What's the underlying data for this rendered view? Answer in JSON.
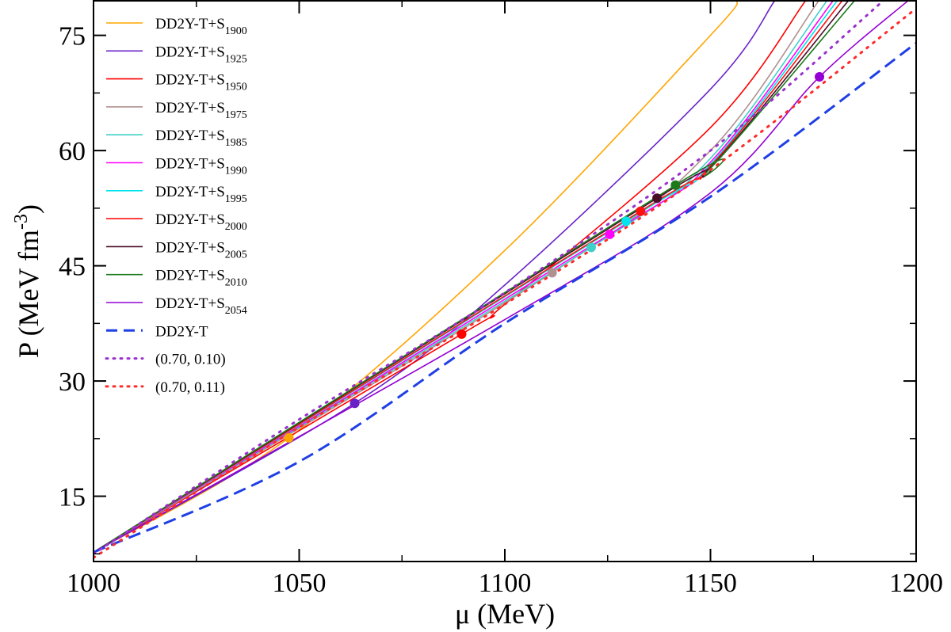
{
  "chart_data": {
    "type": "line",
    "xlabel": "μ (MeV)",
    "ylabel": "P (MeV fm",
    "ylabel_sup": "-3",
    "ylabel_close": ")",
    "xlim": [
      1000,
      1200
    ],
    "ylim": [
      6.5,
      79.5
    ],
    "xticks": [
      1000,
      1050,
      1100,
      1150,
      1200
    ],
    "xtick_labels": [
      "1000",
      "1050",
      "1100",
      "1150",
      "1200"
    ],
    "yticks": [
      15,
      30,
      45,
      60,
      75
    ],
    "ytick_labels": [
      "15",
      "30",
      "45",
      "60",
      "75"
    ],
    "x_minor_step": 25,
    "y_minor_step": 7.5,
    "grid": false,
    "legend_position": "top-left",
    "series": [
      {
        "name": "DD2Y-T+S1900",
        "label_base": "DD2Y-T+S",
        "label_sub": "1900",
        "color": "#ffa500",
        "style": "solid",
        "x": [
          1000,
          1047.5,
          1100,
          1150,
          1156.6
        ],
        "y": [
          7.7,
          22.6,
          47.0,
          75.0,
          79.5
        ],
        "marker": [
          1047.5,
          22.6
        ]
      },
      {
        "name": "DD2Y-T+S1925",
        "label_base": "DD2Y-T+S",
        "label_sub": "1925",
        "color": "#6a22c7",
        "style": "solid",
        "x": [
          1000,
          1063.5,
          1100,
          1150,
          1165.6
        ],
        "y": [
          7.7,
          27.1,
          42.5,
          68.0,
          79.5
        ],
        "marker": [
          1063.5,
          27.1
        ]
      },
      {
        "name": "DD2Y-T+S1950",
        "label_base": "DD2Y-T+S",
        "label_sub": "1950",
        "color": "#ff0000",
        "style": "solid",
        "x": [
          1000,
          1089.5,
          1100,
          1150,
          1173.1
        ],
        "y": [
          7.7,
          36.1,
          40.0,
          63.0,
          79.5
        ],
        "marker": [
          1089.5,
          36.1
        ]
      },
      {
        "name": "DD2Y-T+S1975",
        "label_base": "DD2Y-T+S",
        "label_sub": "1975",
        "color": "#b09090",
        "style": "solid",
        "x": [
          1000,
          1111.5,
          1150,
          1176.3
        ],
        "y": [
          7.7,
          44.1,
          60.0,
          79.5
        ],
        "marker": [
          1111.5,
          44.1
        ]
      },
      {
        "name": "DD2Y-T+S1985",
        "label_base": "DD2Y-T+S",
        "label_sub": "1985",
        "color": "#40d0c8",
        "style": "solid",
        "x": [
          1000,
          1121.0,
          1150,
          1178.3
        ],
        "y": [
          7.7,
          47.4,
          59.0,
          79.5
        ],
        "marker": [
          1121.0,
          47.4
        ]
      },
      {
        "name": "DD2Y-T+S1990",
        "label_base": "DD2Y-T+S",
        "label_sub": "1990",
        "color": "#ff00ff",
        "style": "solid",
        "x": [
          1000,
          1125.5,
          1150,
          1179.8
        ],
        "y": [
          7.7,
          49.1,
          58.5,
          79.5
        ],
        "marker": [
          1125.5,
          49.1
        ]
      },
      {
        "name": "DD2Y-T+S1995",
        "label_base": "DD2Y-T+S",
        "label_sub": "1995",
        "color": "#00e5ee",
        "style": "solid",
        "x": [
          1000,
          1129.5,
          1150,
          1180.8
        ],
        "y": [
          7.7,
          50.8,
          58.2,
          79.5
        ],
        "marker": [
          1129.5,
          50.8
        ]
      },
      {
        "name": "DD2Y-T+S2000",
        "label_base": "DD2Y-T+S",
        "label_sub": "2000",
        "color": "#ff1010",
        "style": "solid",
        "x": [
          1000,
          1133.0,
          1150,
          1182.0
        ],
        "y": [
          7.7,
          52.1,
          58.0,
          79.5
        ],
        "marker": [
          1133.0,
          52.1
        ]
      },
      {
        "name": "DD2Y-T+S2005",
        "label_base": "DD2Y-T+S",
        "label_sub": "2005",
        "color": "#4a0f28",
        "style": "solid",
        "x": [
          1000,
          1137.0,
          1150,
          1183.5
        ],
        "y": [
          7.7,
          53.8,
          57.8,
          79.5
        ],
        "marker": [
          1137.0,
          53.8
        ]
      },
      {
        "name": "DD2Y-T+S2010",
        "label_base": "DD2Y-T+S",
        "label_sub": "2010",
        "color": "#1b7a1b",
        "style": "solid",
        "x": [
          1000,
          1141.5,
          1150,
          1185.0
        ],
        "y": [
          7.7,
          55.5,
          57.7,
          79.5
        ],
        "marker": [
          1141.5,
          55.5
        ]
      },
      {
        "name": "DD2Y-T+S2054",
        "label_base": "DD2Y-T+S",
        "label_sub": "2054",
        "color": "#9400d3",
        "style": "solid",
        "x": [
          1000,
          1100,
          1150,
          1176.5,
          1198.0
        ],
        "y": [
          7.7,
          38.0,
          54.5,
          69.6,
          79.5
        ],
        "marker": [
          1176.5,
          69.6
        ]
      },
      {
        "name": "DD2Y-T",
        "label_base": "DD2Y-T",
        "label_sub": "",
        "color": "#1f3fe6",
        "style": "dashed",
        "x": [
          1000,
          1050,
          1100,
          1150,
          1200
        ],
        "y": [
          7.7,
          19.5,
          37.5,
          54.0,
          74.0
        ],
        "marker": null
      },
      {
        "name": "(0.70, 0.10)",
        "label_base": "(0.70, 0.10)",
        "label_sub": "",
        "color": "#9932cc",
        "style": "dotted",
        "x": [
          1000,
          1050,
          1100,
          1150,
          1192.0
        ],
        "y": [
          7.5,
          25.0,
          41.5,
          60.0,
          79.5
        ],
        "marker": null
      },
      {
        "name": "(0.70, 0.11)",
        "label_base": "(0.70, 0.11)",
        "label_sub": "",
        "color": "#ff2a2a",
        "style": "dotted",
        "x": [
          1000,
          1050,
          1100,
          1150,
          1200
        ],
        "y": [
          7.0,
          24.0,
          40.0,
          57.5,
          78.5
        ],
        "marker": null
      }
    ]
  }
}
